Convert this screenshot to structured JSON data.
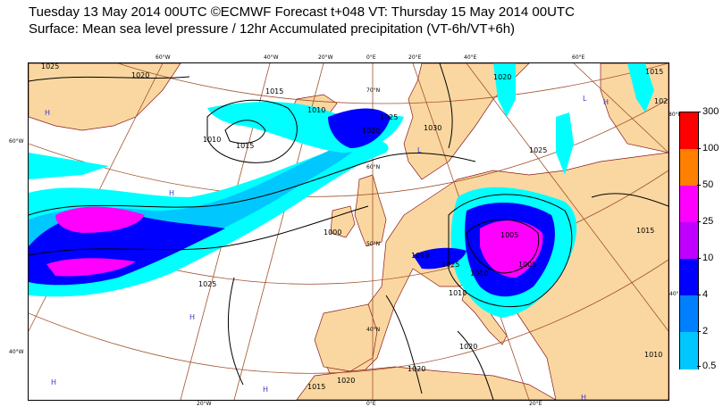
{
  "title": {
    "line1": "Tuesday 13 May 2014 00UTC ©ECMWF Forecast t+048 VT: Thursday 15 May 2014 00UTC",
    "line2": "Surface: Mean sea level pressure / 12hr Accumulated precipitation (VT-6h/VT+6h)"
  },
  "legend": {
    "ticks": [
      "300",
      "100",
      "50",
      "25",
      "10",
      "4",
      "2",
      "0.5"
    ],
    "colors": [
      "#ff0000",
      "#ff8000",
      "#ff00ff",
      "#c000ff",
      "#0000ff",
      "#0080ff",
      "#00c8ff",
      "#00ffff"
    ]
  },
  "map": {
    "land_color": "#fad7a0",
    "coastline_color": "#8b1a1a",
    "graticule_color": "#a0522d",
    "isobar_color": "#000000",
    "outer_coords": {
      "top": [
        "60°W",
        "40°W",
        "20°W",
        "0°E",
        "20°E",
        "40°E",
        "60°E"
      ],
      "left": [
        "60°W",
        "40°W"
      ],
      "bottom": [
        "20°W",
        "0°E",
        "20°E"
      ],
      "right": [
        "80°E",
        "40°E"
      ]
    },
    "inner_coords": [
      "70°N",
      "60°N",
      "50°N",
      "40°N"
    ],
    "isobar_labels": [
      "1025",
      "1020",
      "1015",
      "1010",
      "1010",
      "1020",
      "1025",
      "1030",
      "1020",
      "1015",
      "1025",
      "1005",
      "1025",
      "1010",
      "1005",
      "1000",
      "1010",
      "1015",
      "1010",
      "1025",
      "1020",
      "1015",
      "1020",
      "1020",
      "1010",
      "1025",
      "1015"
    ],
    "pressure_centers": [
      "H",
      "H",
      "L",
      "H",
      "L",
      "H",
      "H",
      "H",
      "H"
    ]
  }
}
